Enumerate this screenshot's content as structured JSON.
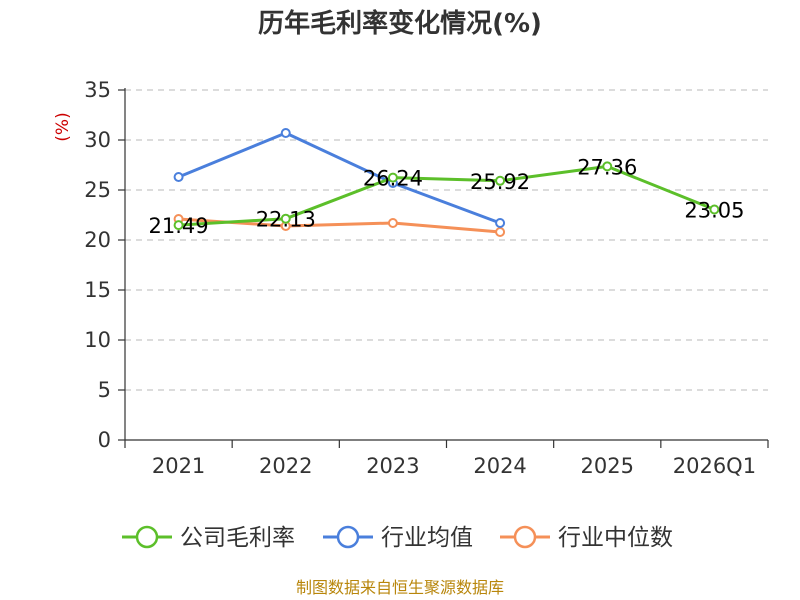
{
  "chart_data": {
    "type": "line",
    "title": "历年毛利率变化情况(%)",
    "ylabel": "(%)",
    "categories": [
      "2021",
      "2022",
      "2023",
      "2024",
      "2025",
      "2026Q1"
    ],
    "yticks": [
      "0",
      "5",
      "10",
      "15",
      "20",
      "25",
      "30",
      "35"
    ],
    "ylim": [
      0,
      35
    ],
    "grid": true,
    "legend_position": "bottom",
    "series": [
      {
        "name": "公司毛利率",
        "color": "#5cbf2a",
        "values": [
          21.49,
          22.13,
          26.24,
          25.92,
          27.36,
          23.05
        ],
        "labels": [
          "21.49",
          "22.13",
          "26.24",
          "25.92",
          "27.36",
          "23.05"
        ]
      },
      {
        "name": "行业均值",
        "color": "#4a7fdc",
        "values": [
          26.3,
          30.7,
          25.7,
          21.7,
          null,
          null
        ]
      },
      {
        "name": "行业中位数",
        "color": "#f59058",
        "values": [
          22.1,
          21.4,
          21.7,
          20.8,
          null,
          null
        ]
      }
    ]
  },
  "footer": {
    "source": "制图数据来自恒生聚源数据库"
  }
}
